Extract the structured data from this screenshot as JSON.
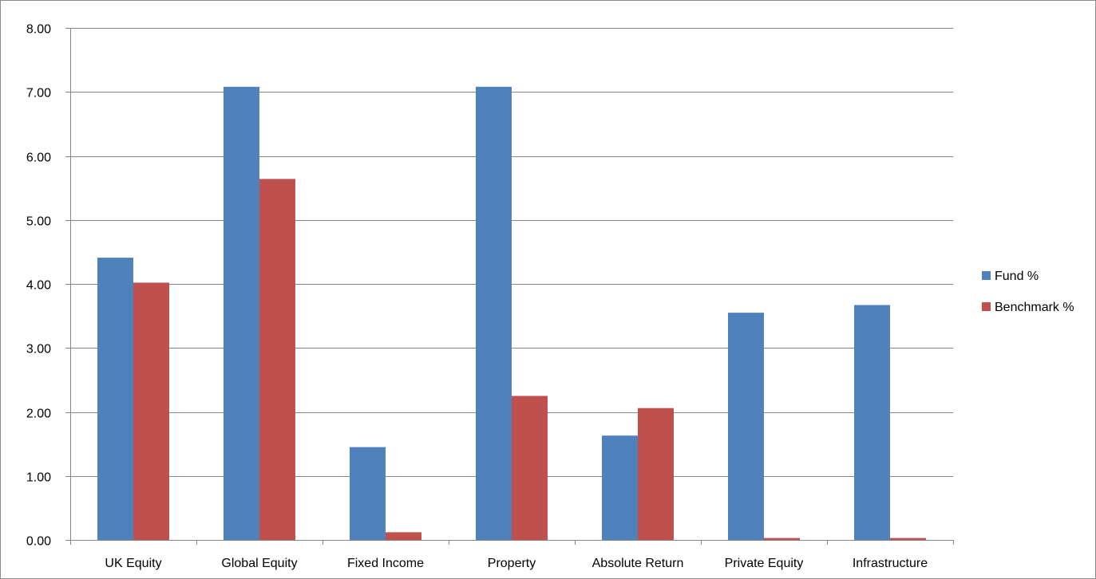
{
  "colors": {
    "fund": "#4f81bd",
    "benchmark": "#c0504d",
    "gridline": "#868686",
    "axis": "#868686"
  },
  "chart_data": {
    "type": "bar",
    "title": "",
    "xlabel": "",
    "ylabel": "",
    "categories": [
      "UK Equity",
      "Global Equity",
      "Fixed Income",
      "Property",
      "Absolute Return",
      "Private Equity",
      "Infrastructure"
    ],
    "series": [
      {
        "name": "Fund %",
        "values": [
          4.41,
          7.08,
          1.45,
          7.08,
          1.63,
          3.55,
          3.67
        ]
      },
      {
        "name": "Benchmark %",
        "values": [
          4.02,
          5.64,
          0.12,
          2.25,
          2.06,
          0.03,
          0.03
        ]
      }
    ],
    "ylim": [
      0,
      8
    ],
    "yticks": [
      "0.00",
      "1.00",
      "2.00",
      "3.00",
      "4.00",
      "5.00",
      "6.00",
      "7.00",
      "8.00"
    ],
    "grid": true,
    "legend": "right"
  }
}
